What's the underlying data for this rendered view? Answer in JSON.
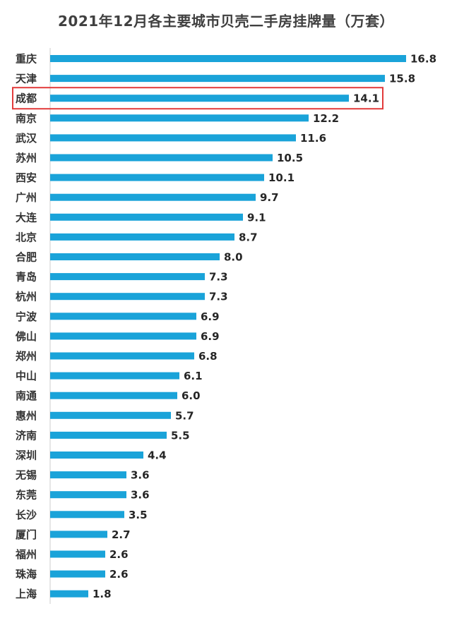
{
  "chart_data": {
    "type": "bar",
    "orientation": "horizontal",
    "title": "2021年12月各主要城市贝壳二手房挂牌量（万套）",
    "categories": [
      "重庆",
      "天津",
      "成都",
      "南京",
      "武汉",
      "苏州",
      "西安",
      "广州",
      "大连",
      "北京",
      "合肥",
      "青岛",
      "杭州",
      "宁波",
      "佛山",
      "郑州",
      "中山",
      "南通",
      "惠州",
      "济南",
      "深圳",
      "无锡",
      "东莞",
      "长沙",
      "厦门",
      "福州",
      "珠海",
      "上海"
    ],
    "values": [
      16.8,
      15.8,
      14.1,
      12.2,
      11.6,
      10.5,
      10.1,
      9.7,
      9.1,
      8.7,
      8.0,
      7.3,
      7.3,
      6.9,
      6.9,
      6.8,
      6.1,
      6.0,
      5.7,
      5.5,
      4.4,
      3.6,
      3.6,
      3.5,
      2.7,
      2.6,
      2.6,
      1.8
    ],
    "value_labels": [
      "16.8",
      "15.8",
      "14.1",
      "12.2",
      "11.6",
      "10.5",
      "10.1",
      "9.7",
      "9.1",
      "8.7",
      "8.0",
      "7.3",
      "7.3",
      "6.9",
      "6.9",
      "6.8",
      "6.1",
      "6.0",
      "5.7",
      "5.5",
      "4.4",
      "3.6",
      "3.6",
      "3.5",
      "2.7",
      "2.6",
      "2.6",
      "1.8"
    ],
    "highlighted_category": "成都",
    "bar_color": "#1aa3d9",
    "highlight_color": "#e23b3b",
    "xlim": [
      0,
      17.2
    ],
    "grid": false,
    "legend": "none"
  }
}
